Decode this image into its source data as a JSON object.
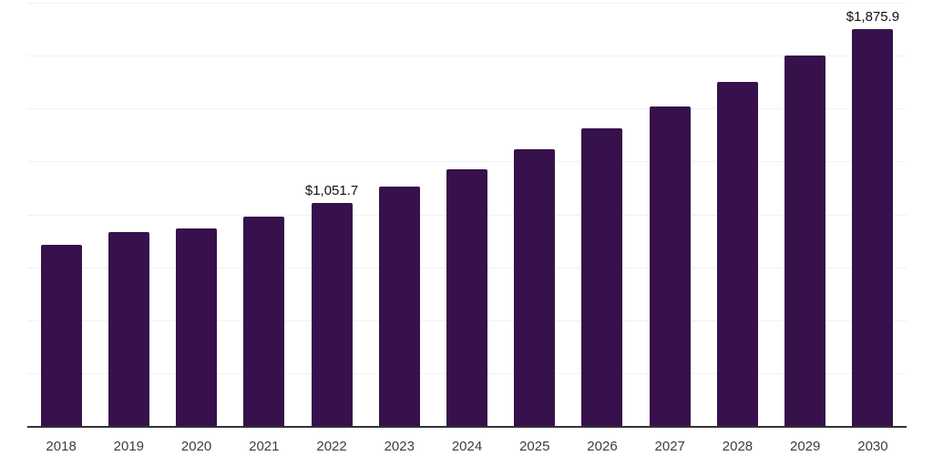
{
  "chart_data": {
    "type": "bar",
    "title": "",
    "xlabel": "",
    "ylabel": "",
    "ylim": [
      0,
      2000
    ],
    "gridline_interval": 250,
    "grid": "horizontal",
    "legend_position": "none",
    "categories": [
      "2018",
      "2019",
      "2020",
      "2021",
      "2022",
      "2023",
      "2024",
      "2025",
      "2026",
      "2027",
      "2028",
      "2029",
      "2030"
    ],
    "values": [
      857,
      917,
      934,
      990,
      1051.7,
      1131,
      1213,
      1307,
      1406,
      1509,
      1624,
      1752,
      1875.9
    ],
    "data_labels": [
      "",
      "",
      "",
      "",
      "$1,051.7",
      "",
      "",
      "",
      "",
      "",
      "",
      "",
      "$1,875.9"
    ]
  },
  "colors": {
    "background": "#ffffff",
    "bar": "#36114b",
    "gridline": "#f2f2f2",
    "axis_line": "#333333",
    "tick_label": "#3d3d3d",
    "data_label": "#111111"
  }
}
